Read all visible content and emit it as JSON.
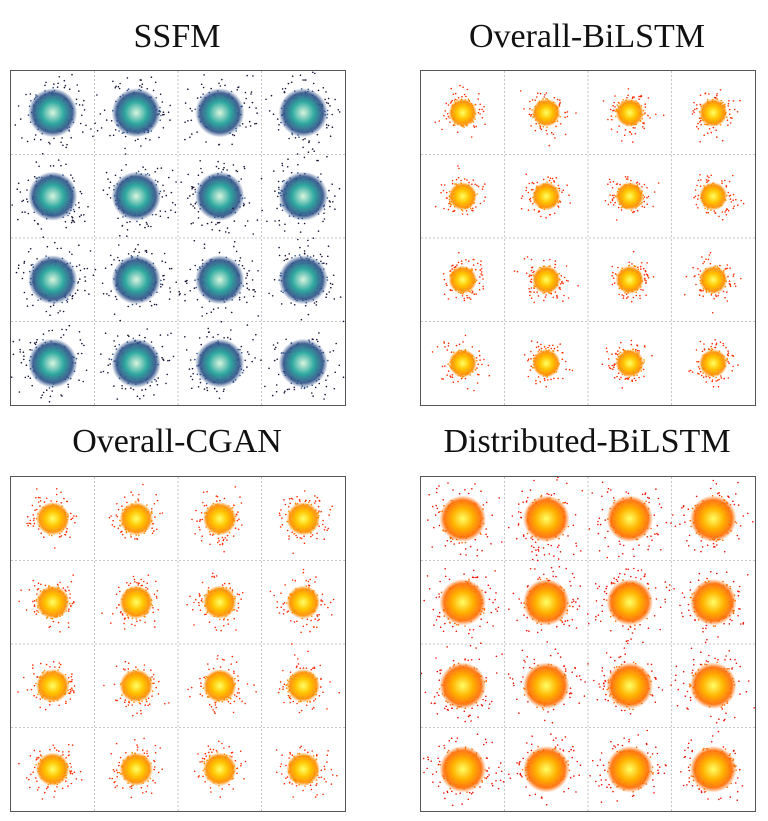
{
  "figure": {
    "panels": [
      {
        "title": "SSFM",
        "palette": "viridis",
        "colors": {
          "core": "#d9f5df",
          "mid": "#2fa9a0",
          "edge": "#2d4f86",
          "outer": "#1a0f33"
        }
      },
      {
        "title": "Overall-BiLSTM",
        "palette": "autumn",
        "colors": {
          "core": "#ffff66",
          "mid": "#ffc400",
          "edge": "#ff8c00",
          "outer": "#ff2a00"
        }
      },
      {
        "title": "Overall-CGAN",
        "palette": "autumn",
        "colors": {
          "core": "#ffff66",
          "mid": "#ffc400",
          "edge": "#ff8c00",
          "outer": "#ff2a00"
        }
      },
      {
        "title": "Distributed-BiLSTM",
        "palette": "autumn",
        "colors": {
          "core": "#ffff66",
          "mid": "#ffb300",
          "edge": "#ff6a00",
          "outer": "#ee1000"
        }
      }
    ]
  },
  "chart_data": [
    {
      "type": "scatter",
      "title": "SSFM",
      "constellation": "16-QAM",
      "grid_levels": [
        -3,
        -1,
        1,
        3
      ],
      "xlim": [
        -4,
        4
      ],
      "ylim": [
        -4,
        4
      ],
      "grid": true,
      "cluster_spread": 0.38
    },
    {
      "type": "scatter",
      "title": "Overall-BiLSTM",
      "constellation": "16-QAM",
      "grid_levels": [
        -3,
        -1,
        1,
        3
      ],
      "xlim": [
        -4,
        4
      ],
      "ylim": [
        -4,
        4
      ],
      "grid": true,
      "cluster_spread": 0.22
    },
    {
      "type": "scatter",
      "title": "Overall-CGAN",
      "constellation": "16-QAM",
      "grid_levels": [
        -3,
        -1,
        1,
        3
      ],
      "xlim": [
        -4,
        4
      ],
      "ylim": [
        -4,
        4
      ],
      "grid": true,
      "cluster_spread": 0.26
    },
    {
      "type": "scatter",
      "title": "Distributed-BiLSTM",
      "constellation": "16-QAM",
      "grid_levels": [
        -3,
        -1,
        1,
        3
      ],
      "xlim": [
        -4,
        4
      ],
      "ylim": [
        -4,
        4
      ],
      "grid": true,
      "cluster_spread": 0.36
    }
  ]
}
